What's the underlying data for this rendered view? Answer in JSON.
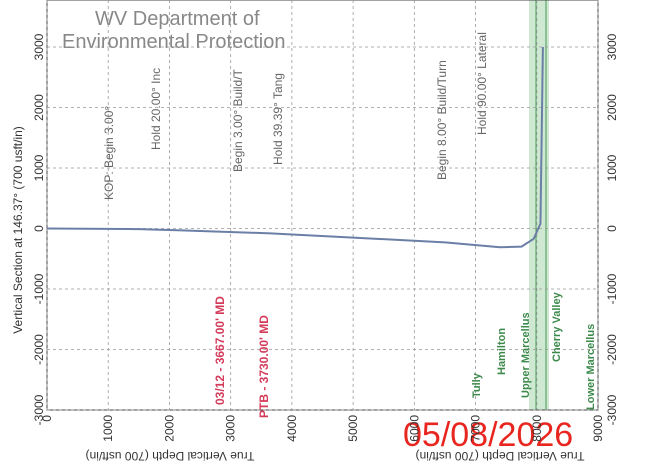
{
  "chart_data": {
    "type": "line",
    "watermark": [
      "WV Department of",
      "Environmental Protection"
    ],
    "ylabel": "Vertical Section at 146.37° (700 usft/in)",
    "xlabel": "True Vertical Depth (700 usft/in)",
    "stamp": "05/08/2026",
    "xlim": [
      0,
      9000
    ],
    "xticks": [
      0,
      1000,
      2000,
      3000,
      4000,
      5000,
      6000,
      7000,
      8000,
      9000
    ],
    "ylim": [
      -3000,
      3000
    ],
    "yticks": [
      -3000,
      -2000,
      -1000,
      0,
      1000,
      2000,
      3000
    ],
    "grid": true,
    "series": [
      {
        "color": "#6b7fa6",
        "x": [
          0,
          1500,
          2200,
          3650,
          5000,
          6500,
          7400,
          7750,
          7950,
          8060,
          8100
        ],
        "values": [
          0,
          -10,
          -30,
          -80,
          -150,
          -230,
          -310,
          -300,
          -170,
          80,
          3000
        ]
      }
    ],
    "annotations": [
      "KOP: Begin 3.00°",
      "Hold 20.00° Inc",
      "Begin 3.00° Build/T",
      "Hold 39.39° Tang",
      "Begin 8.00° Build/Turn",
      "Hold 90.00° Lateral"
    ],
    "markers": [
      "03/12 - 3667.00' MD",
      "PTB - 3730.00' MD"
    ],
    "formations": [
      "Tully",
      "Hamilton",
      "Upper Marcellus",
      "Cherry Valley",
      "Lower Marcellus"
    ]
  }
}
